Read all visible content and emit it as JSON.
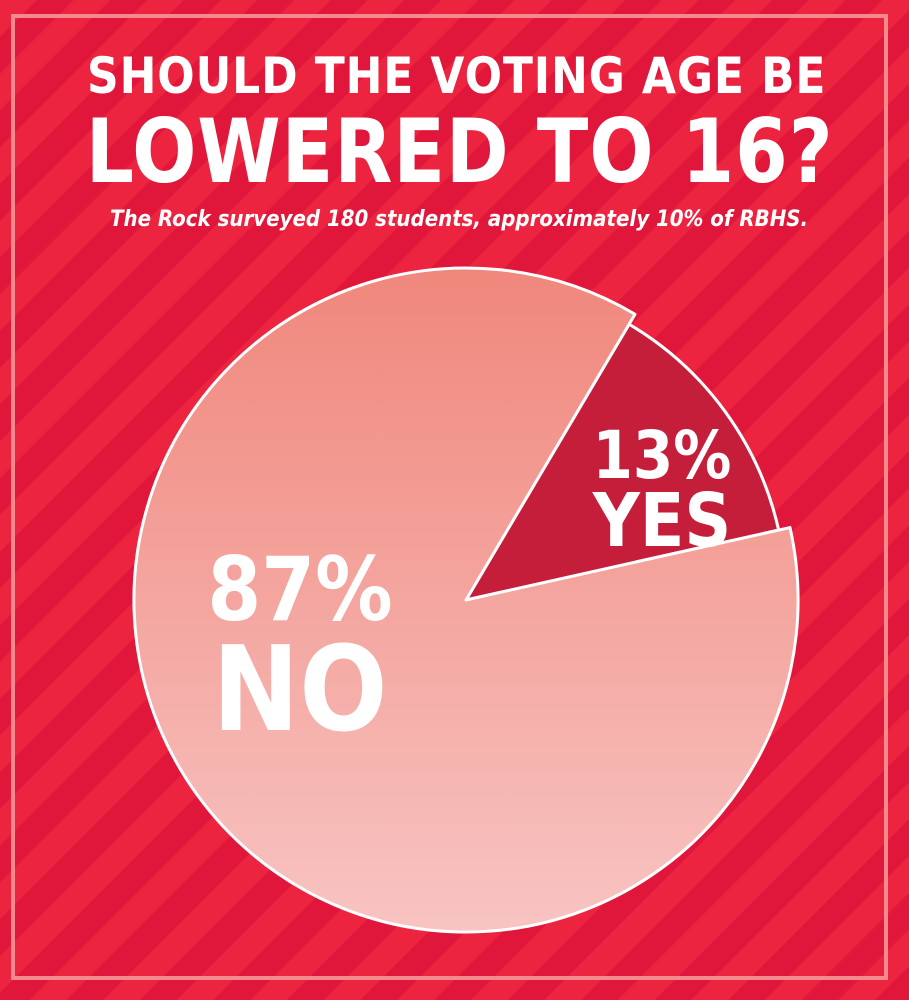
{
  "title": {
    "line1": "SHOULD THE VOTING AGE BE",
    "line2": "LOWERED TO 16?"
  },
  "subtitle": "The Rock surveyed 180 students, approximately 10% of RBHS.",
  "colors": {
    "background": "#e8203a",
    "frame": "#f48a8e",
    "no_slice_top": "#f0877c",
    "no_slice_bottom": "#f8c4c2",
    "yes_slice": "#c41e3a",
    "outline": "#ffffff",
    "text": "#ffffff"
  },
  "chart_data": {
    "type": "pie",
    "title": "SHOULD THE VOTING AGE BE LOWERED TO 16?",
    "subtitle": "The Rock surveyed 180 students, approximately 10% of RBHS.",
    "slices": [
      {
        "label": "YES",
        "value": 13,
        "value_label": "13%",
        "color": "#c41e3a"
      },
      {
        "label": "NO",
        "value": 87,
        "value_label": "87%",
        "color": "#f0877c"
      }
    ],
    "legend": "none"
  }
}
